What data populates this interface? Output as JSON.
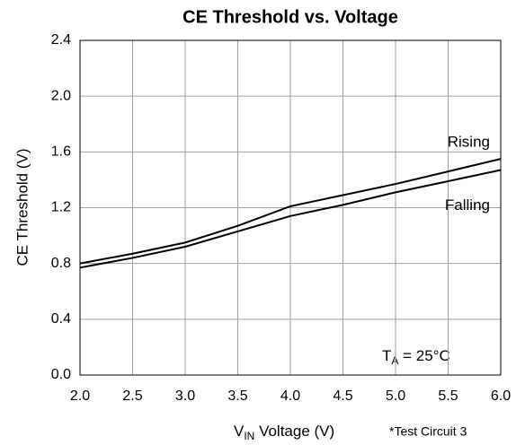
{
  "chart_data": {
    "type": "line",
    "title": "CE Threshold vs. Voltage",
    "ylabel": "CE Threshold (V)",
    "xlabel": [
      "V",
      "IN",
      " Voltage (V)"
    ],
    "note": "*Test Circuit 3",
    "annotation": [
      "T",
      "A",
      " = 25°C"
    ],
    "x": [
      2,
      2.5,
      3,
      3.5,
      4,
      4.5,
      5,
      5.5,
      6
    ],
    "series": [
      {
        "name": "Rising",
        "color": "#000000",
        "values": [
          0.8,
          0.87,
          0.95,
          1.07,
          1.21,
          1.29,
          1.37,
          1.46,
          1.55
        ]
      },
      {
        "name": "Falling",
        "color": "#000000",
        "values": [
          0.77,
          0.84,
          0.92,
          1.03,
          1.14,
          1.22,
          1.31,
          1.39,
          1.47
        ]
      }
    ],
    "xlim": [
      2,
      6
    ],
    "xticks": [
      {
        "value": 2,
        "label": "2.0"
      },
      2.5,
      {
        "value": 3,
        "label": "3.0"
      },
      3.5,
      {
        "value": 4,
        "label": "4.0"
      },
      4.5,
      {
        "value": 5,
        "label": "5.0"
      },
      5.5,
      {
        "value": 6,
        "label": "6.0"
      }
    ],
    "ylim": [
      0,
      2.4
    ],
    "yticks": [
      {
        "value": 0,
        "label": "0.0"
      },
      0.4,
      0.8,
      1.2,
      1.6,
      {
        "value": 2,
        "label": "2.0"
      },
      2.4
    ],
    "grid": true
  }
}
